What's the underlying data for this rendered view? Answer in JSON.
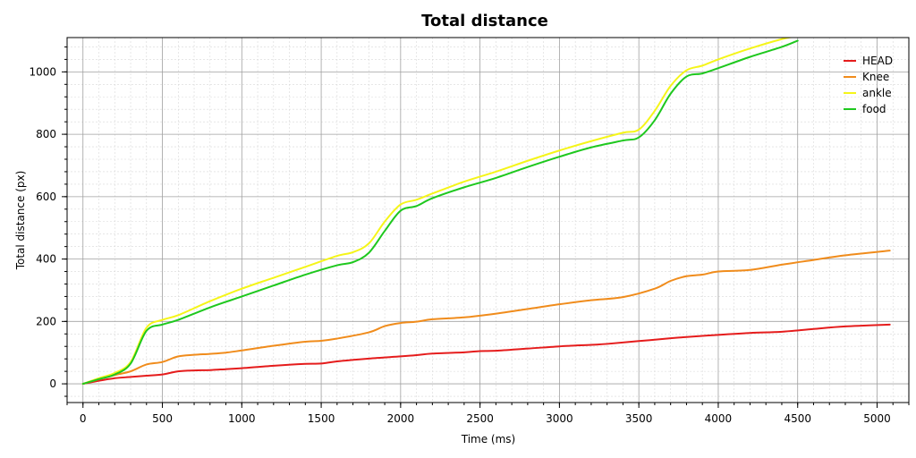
{
  "chart_data": {
    "type": "line",
    "title": "Total distance",
    "xlabel": "Time (ms)",
    "ylabel": "Total distance (px)",
    "xlim": [
      -100,
      5200
    ],
    "ylim": [
      -60,
      1110
    ],
    "x_ticks": [
      0,
      500,
      1000,
      1500,
      2000,
      2500,
      3000,
      3500,
      4000,
      4500,
      5000
    ],
    "y_ticks": [
      0,
      200,
      400,
      600,
      800,
      1000
    ],
    "grid": true,
    "legend_position": "top-right",
    "series": [
      {
        "name": "HEAD",
        "color": "#e51c1c",
        "x": [
          0,
          100,
          200,
          300,
          400,
          500,
          600,
          700,
          800,
          900,
          1000,
          1200,
          1400,
          1500,
          1600,
          1800,
          2000,
          2100,
          2200,
          2400,
          2500,
          2600,
          2800,
          3000,
          3200,
          3300,
          3500,
          3700,
          3800,
          4000,
          4200,
          4400,
          4600,
          4800,
          5080
        ],
        "values": [
          0,
          10,
          18,
          22,
          26,
          30,
          40,
          43,
          44,
          47,
          50,
          58,
          64,
          65,
          72,
          81,
          88,
          92,
          97,
          101,
          105,
          106,
          113,
          120,
          125,
          128,
          137,
          146,
          150,
          157,
          163,
          167,
          176,
          184,
          190
        ]
      },
      {
        "name": "Knee",
        "color": "#f08c1c",
        "x": [
          0,
          100,
          200,
          300,
          400,
          500,
          600,
          700,
          800,
          900,
          1000,
          1200,
          1400,
          1500,
          1600,
          1800,
          1900,
          2000,
          2100,
          2200,
          2400,
          2600,
          2800,
          3000,
          3200,
          3400,
          3600,
          3700,
          3800,
          3900,
          4000,
          4200,
          4400,
          4600,
          4800,
          5080
        ],
        "values": [
          0,
          15,
          28,
          40,
          62,
          70,
          88,
          93,
          96,
          100,
          107,
          122,
          135,
          138,
          145,
          165,
          185,
          195,
          199,
          207,
          213,
          225,
          240,
          255,
          268,
          278,
          305,
          330,
          345,
          350,
          360,
          365,
          382,
          397,
          412,
          427
        ]
      },
      {
        "name": "ankle",
        "color": "#f5f519",
        "x": [
          0,
          100,
          200,
          300,
          400,
          500,
          600,
          800,
          1000,
          1200,
          1400,
          1600,
          1700,
          1800,
          1900,
          2000,
          2100,
          2200,
          2400,
          2600,
          2800,
          3000,
          3200,
          3400,
          3500,
          3600,
          3700,
          3800,
          3900,
          4000,
          4200,
          4400,
          4500
        ],
        "values": [
          0,
          18,
          35,
          70,
          180,
          205,
          220,
          265,
          305,
          340,
          375,
          410,
          422,
          450,
          520,
          575,
          590,
          610,
          648,
          680,
          715,
          748,
          778,
          805,
          815,
          875,
          955,
          1005,
          1020,
          1040,
          1075,
          1105,
          1115
        ]
      },
      {
        "name": "food",
        "color": "#1ec81e",
        "x": [
          0,
          100,
          200,
          300,
          400,
          500,
          600,
          800,
          1000,
          1200,
          1400,
          1600,
          1700,
          1800,
          1900,
          2000,
          2100,
          2200,
          2400,
          2600,
          2800,
          3000,
          3200,
          3400,
          3500,
          3600,
          3700,
          3800,
          3900,
          4000,
          4200,
          4400,
          4500
        ],
        "values": [
          0,
          15,
          30,
          65,
          170,
          190,
          205,
          245,
          280,
          315,
          350,
          380,
          390,
          420,
          490,
          555,
          570,
          595,
          630,
          660,
          695,
          728,
          758,
          780,
          790,
          845,
          930,
          985,
          995,
          1012,
          1048,
          1080,
          1100
        ]
      }
    ]
  }
}
